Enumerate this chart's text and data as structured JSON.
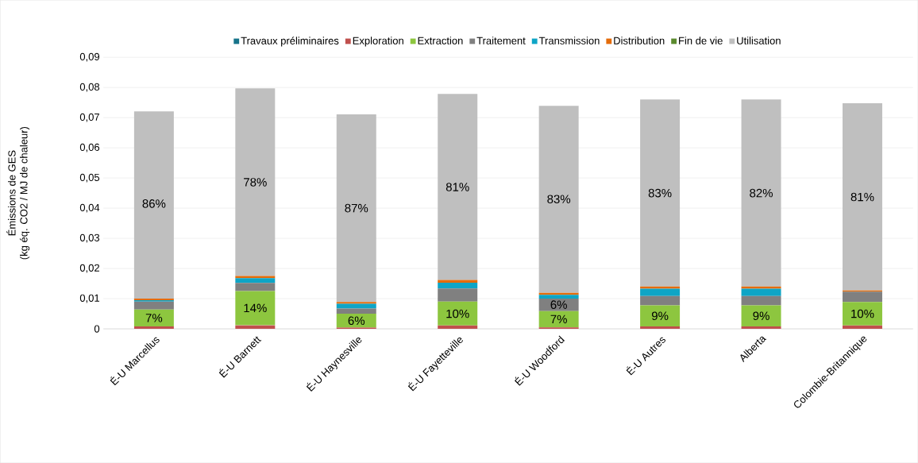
{
  "chart_data": {
    "type": "bar",
    "stacked": true,
    "ylabel": "Émissions de GES\n(kg éq. CO2 / MJ de chaleur)",
    "categories": [
      "É-U Marcellus",
      "É-U Barnett",
      "É-U Haynesville",
      "É-U Fayetteville",
      "É-U Woodford",
      "É-U Autres",
      "Alberta",
      "Colombie-Britannique"
    ],
    "ylim": [
      0,
      0.09
    ],
    "yticks": [
      0,
      {
        "value": 0.01,
        "label": "0,01"
      },
      {
        "value": 0.02,
        "label": "0,02"
      },
      {
        "value": 0.03,
        "label": "0,03"
      },
      {
        "value": 0.04,
        "label": "0,04"
      },
      {
        "value": 0.05,
        "label": "0,05"
      },
      {
        "value": 0.06,
        "label": "0,06"
      },
      {
        "value": 0.07,
        "label": "0,07"
      },
      {
        "value": 0.08,
        "label": "0,08"
      },
      {
        "value": 0.09,
        "label": "0,09"
      }
    ],
    "grid": "y",
    "legend": "top",
    "annotations": [
      {
        "text": "7%",
        "x": "É-U Marcellus",
        "y": 0.0036
      },
      {
        "text": "14%",
        "x": "É-U Barnett",
        "y": 0.0069
      },
      {
        "text": "6%",
        "x": "É-U Haynesville",
        "y": 0.0027
      },
      {
        "text": "10%",
        "x": "É-U Fayetteville",
        "y": 0.005
      },
      {
        "text": "7%",
        "x": "É-U Woodford",
        "y": 0.0032
      },
      {
        "text": "9%",
        "x": "É-U Autres",
        "y": 0.0043
      },
      {
        "text": "9%",
        "x": "Alberta",
        "y": 0.0043
      },
      {
        "text": "10%",
        "x": "Colombie-Britannique",
        "y": 0.005
      },
      {
        "text": "6%",
        "x": "É-U Woodford",
        "y": 0.008
      },
      {
        "text": "86%",
        "x": "É-U Marcellus",
        "y": 0.0415
      },
      {
        "text": "78%",
        "x": "É-U Barnett",
        "y": 0.0486
      },
      {
        "text": "87%",
        "x": "É-U Haynesville",
        "y": 0.04
      },
      {
        "text": "81%",
        "x": "É-U Fayetteville",
        "y": 0.047
      },
      {
        "text": "83%",
        "x": "É-U Woodford",
        "y": 0.043
      },
      {
        "text": "83%",
        "x": "É-U Autres",
        "y": 0.045
      },
      {
        "text": "82%",
        "x": "Alberta",
        "y": 0.045
      },
      {
        "text": "81%",
        "x": "Colombie-Britannique",
        "y": 0.0437
      }
    ],
    "series": [
      {
        "name": "Travaux préliminaires",
        "color": "#17748a",
        "values": [
          null,
          null,
          null,
          null,
          null,
          null,
          null,
          null
        ]
      },
      {
        "name": "Exploration",
        "color": "#c0504d",
        "values": [
          0.0008,
          0.0012,
          0.0004,
          0.0011,
          0.0005,
          0.0008,
          0.0008,
          0.0011
        ]
      },
      {
        "name": "Extraction",
        "color": "#8dc63f",
        "values": [
          0.0056,
          0.0113,
          0.0046,
          0.0079,
          0.0054,
          0.007,
          0.007,
          0.0078
        ]
      },
      {
        "name": "Traitement",
        "color": "#808080",
        "values": [
          0.0026,
          0.0027,
          0.0017,
          0.0044,
          0.0041,
          0.0031,
          0.0031,
          0.0034
        ]
      },
      {
        "name": "Transmission",
        "color": "#0ea5c6",
        "values": [
          0.0005,
          0.0016,
          0.0016,
          0.0019,
          0.0013,
          0.0024,
          0.0024,
          null
        ]
      },
      {
        "name": "Distribution",
        "color": "#e46c0a",
        "values": [
          0.0005,
          0.0007,
          0.0006,
          0.0009,
          0.0006,
          0.0007,
          0.0007,
          0.0004
        ]
      },
      {
        "name": "Fin de vie",
        "color": "#5b8a2e",
        "values": [
          null,
          null,
          null,
          null,
          null,
          null,
          null,
          null
        ]
      },
      {
        "name": "Utilisation",
        "color": "#bfbfbf",
        "values": [
          0.0621,
          0.0622,
          0.0622,
          0.0617,
          0.062,
          0.062,
          0.062,
          0.0621
        ]
      }
    ]
  }
}
